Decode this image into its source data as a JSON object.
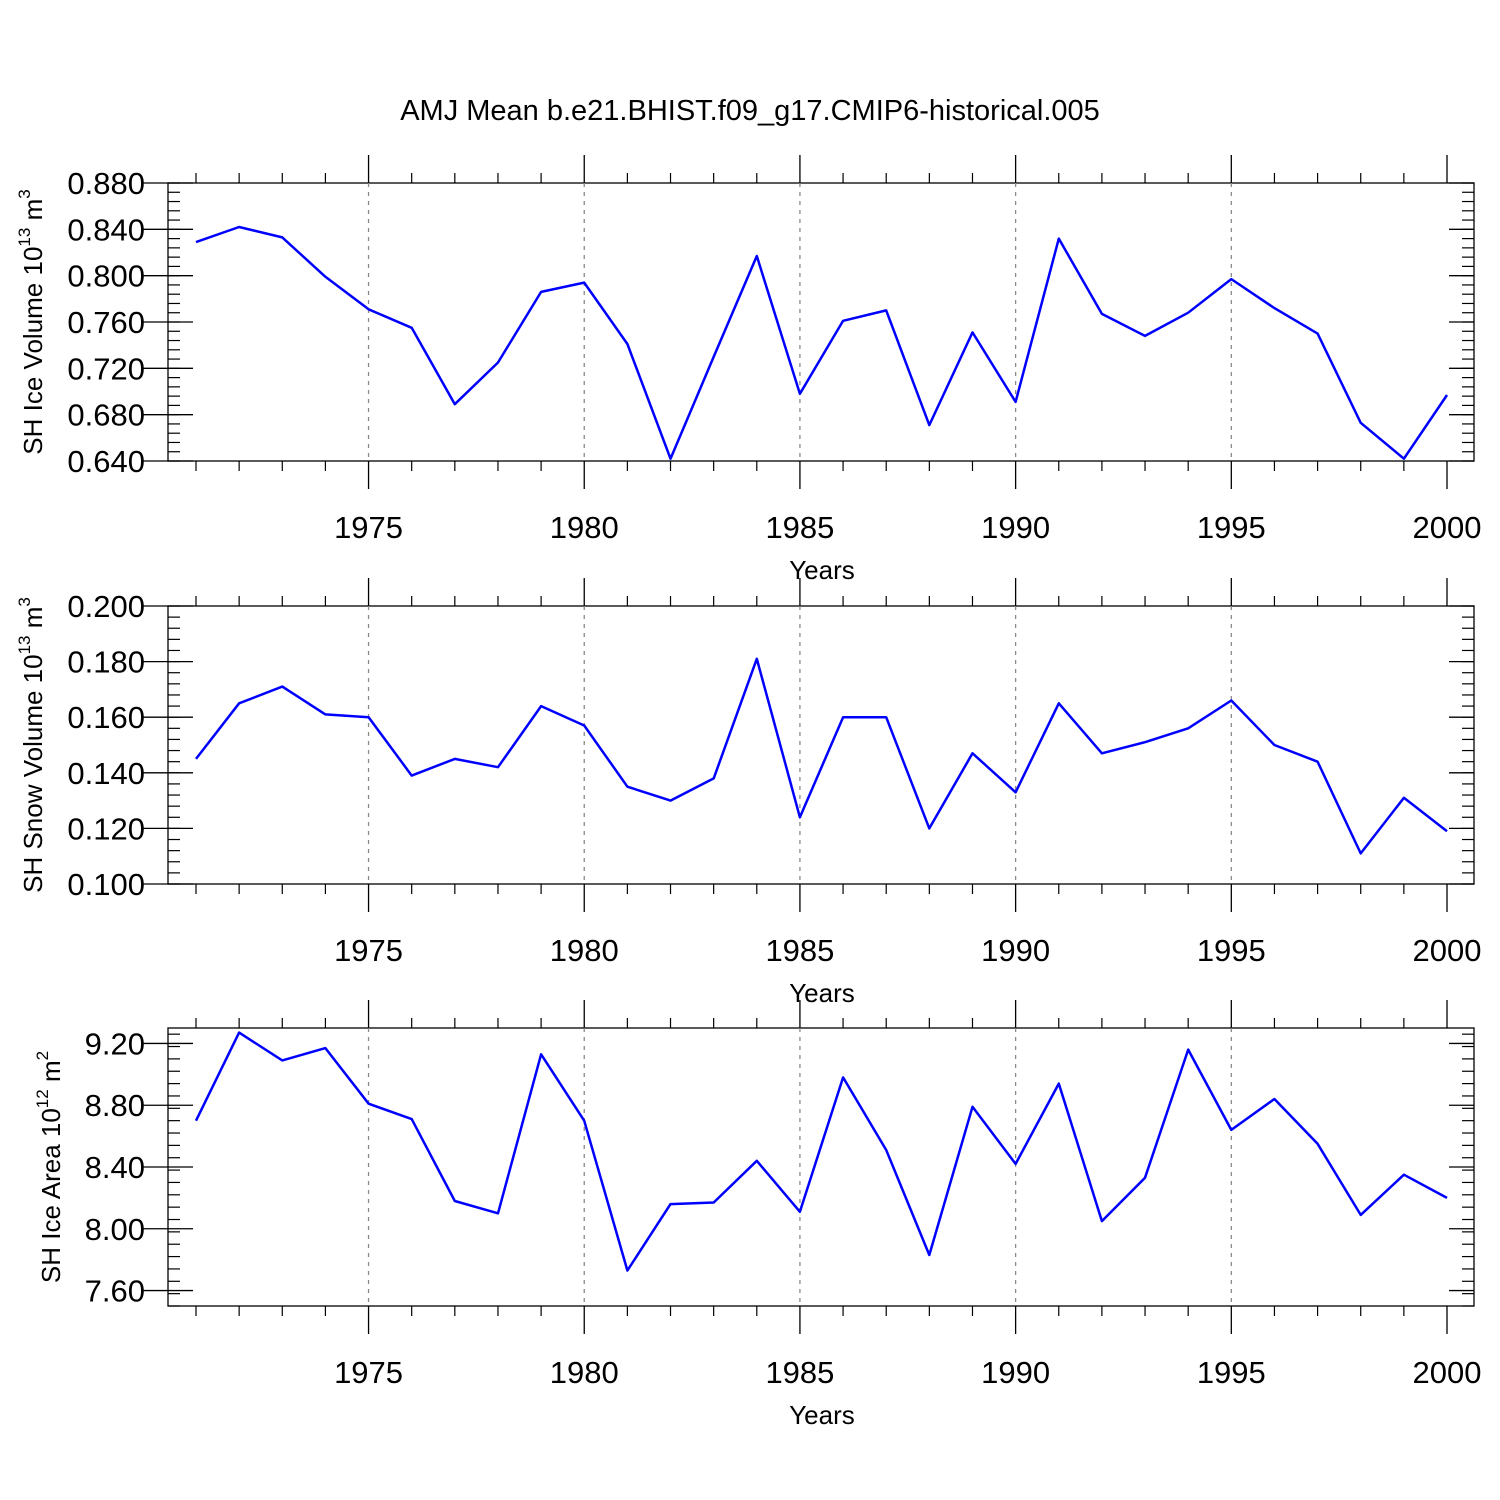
{
  "title": "AMJ Mean b.e21.BHIST.f09_g17.CMIP6-historical.005",
  "line_color": "#0000ff",
  "chart_data": [
    {
      "type": "line",
      "ylabel_main": "SH Ice Volume 10",
      "ylabel_exp": "13",
      "ylabel_unit": " m",
      "ylabel_unit_exp": "3",
      "xlabel": "Years",
      "xlim": [
        1971,
        2000
      ],
      "ylim": [
        0.64,
        0.88
      ],
      "yticks": [
        0.64,
        0.68,
        0.72,
        0.76,
        0.8,
        0.84,
        0.88
      ],
      "ytick_labels": [
        "0.640",
        "0.680",
        "0.720",
        "0.760",
        "0.800",
        "0.840",
        "0.880"
      ],
      "xticks": [
        1975,
        1980,
        1985,
        1990,
        1995,
        2000
      ],
      "xtick_labels": [
        "1975",
        "1980",
        "1985",
        "1990",
        "1995",
        "2000"
      ],
      "x": [
        1971,
        1972,
        1973,
        1974,
        1975,
        1976,
        1977,
        1978,
        1979,
        1980,
        1981,
        1982,
        1983,
        1984,
        1985,
        1986,
        1987,
        1988,
        1989,
        1990,
        1991,
        1992,
        1993,
        1994,
        1995,
        1996,
        1997,
        1998,
        1999,
        2000
      ],
      "values": [
        0.829,
        0.842,
        0.833,
        0.799,
        0.771,
        0.755,
        0.689,
        0.725,
        0.786,
        0.794,
        0.741,
        0.642,
        0.73,
        0.817,
        0.698,
        0.761,
        0.77,
        0.671,
        0.751,
        0.691,
        0.832,
        0.767,
        0.748,
        0.768,
        0.797,
        0.772,
        0.75,
        0.673,
        0.642,
        0.697
      ]
    },
    {
      "type": "line",
      "ylabel_main": "SH Snow Volume 10",
      "ylabel_exp": "13",
      "ylabel_unit": " m",
      "ylabel_unit_exp": "3",
      "xlabel": "Years",
      "xlim": [
        1971,
        2000
      ],
      "ylim": [
        0.1,
        0.2
      ],
      "yticks": [
        0.1,
        0.12,
        0.14,
        0.16,
        0.18,
        0.2
      ],
      "ytick_labels": [
        "0.100",
        "0.120",
        "0.140",
        "0.160",
        "0.180",
        "0.200"
      ],
      "xticks": [
        1975,
        1980,
        1985,
        1990,
        1995,
        2000
      ],
      "xtick_labels": [
        "1975",
        "1980",
        "1985",
        "1990",
        "1995",
        "2000"
      ],
      "x": [
        1971,
        1972,
        1973,
        1974,
        1975,
        1976,
        1977,
        1978,
        1979,
        1980,
        1981,
        1982,
        1983,
        1984,
        1985,
        1986,
        1987,
        1988,
        1989,
        1990,
        1991,
        1992,
        1993,
        1994,
        1995,
        1996,
        1997,
        1998,
        1999,
        2000
      ],
      "values": [
        0.145,
        0.165,
        0.171,
        0.161,
        0.16,
        0.139,
        0.145,
        0.142,
        0.164,
        0.157,
        0.135,
        0.13,
        0.138,
        0.181,
        0.124,
        0.16,
        0.16,
        0.12,
        0.147,
        0.133,
        0.165,
        0.147,
        0.151,
        0.156,
        0.166,
        0.15,
        0.144,
        0.111,
        0.131,
        0.119
      ]
    },
    {
      "type": "line",
      "ylabel_main": "SH Ice Area 10",
      "ylabel_exp": "12",
      "ylabel_unit": " m",
      "ylabel_unit_exp": "2",
      "xlabel": "Years",
      "xlim": [
        1971,
        2000
      ],
      "ylim": [
        7.5,
        9.3
      ],
      "yticks": [
        7.6,
        8.0,
        8.4,
        8.8,
        9.2
      ],
      "ytick_labels": [
        "7.60",
        "8.00",
        "8.40",
        "8.80",
        "9.20"
      ],
      "xticks": [
        1975,
        1980,
        1985,
        1990,
        1995,
        2000
      ],
      "xtick_labels": [
        "1975",
        "1980",
        "1985",
        "1990",
        "1995",
        "2000"
      ],
      "x": [
        1971,
        1972,
        1973,
        1974,
        1975,
        1976,
        1977,
        1978,
        1979,
        1980,
        1981,
        1982,
        1983,
        1984,
        1985,
        1986,
        1987,
        1988,
        1989,
        1990,
        1991,
        1992,
        1993,
        1994,
        1995,
        1996,
        1997,
        1998,
        1999,
        2000
      ],
      "values": [
        8.7,
        9.27,
        9.09,
        9.17,
        8.81,
        8.71,
        8.18,
        8.1,
        9.13,
        8.7,
        7.73,
        8.16,
        8.17,
        8.44,
        8.11,
        8.98,
        8.51,
        7.83,
        8.79,
        8.42,
        8.94,
        8.05,
        8.33,
        9.16,
        8.64,
        8.84,
        8.55,
        8.09,
        8.35,
        8.2
      ]
    }
  ]
}
